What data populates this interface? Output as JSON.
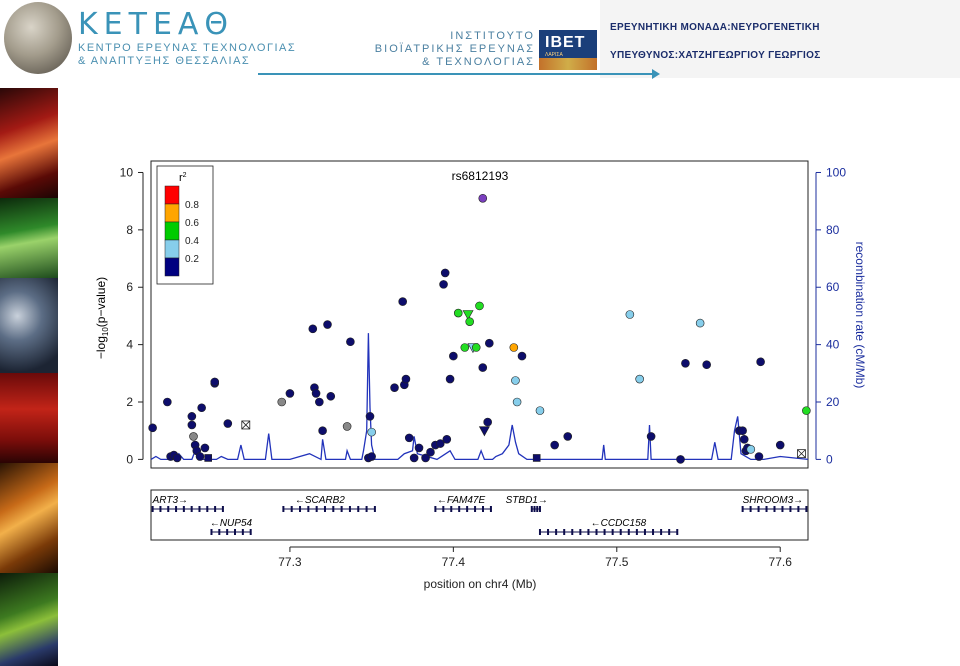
{
  "header": {
    "logo_title": "ΚΕΤΕΑΘ",
    "logo_line1": "ΚΕΝΤΡΟ ΕΡΕΥΝΑΣ ΤΕΧΝΟΛΟΓΙΑΣ",
    "logo_line2": "& ΑΝΑΠΤΥΞΗΣ ΘΕΣΣΑΛΙΑΣ",
    "institute_line1": "ΙΝΣΤΙΤΟΥΤΟ",
    "institute_line2": "ΒΙΟΪΑΤΡΙΚΗΣ ΕΡΕΥΝΑΣ",
    "institute_line3": "& ΤΕΧΝΟΛΟΓΙΑΣ",
    "ibet_logo": "IBET",
    "ibet_sub": "ΛΑΡΙΣΑ",
    "unit_line": "ΕΡΕΥΝΗΤΙΚΗ ΜΟΝΑΔΑ:ΝΕΥΡΟΓΕΝΕΤΙΚΗ",
    "responsible_line": "ΥΠΕΥΘΥΝΟΣ:ΧΑΤΖΗΓΕΩΡΓΙΟΥ ΓΕΩΡΓΙΟΣ",
    "accent_color": "#3a93b8"
  },
  "chart_data": {
    "type": "scatter",
    "title": "rs6812193",
    "xlabel": "position on chr4 (Mb)",
    "ylabel": "−log10(p−value)",
    "y2label": "recombination rate (cM/Mb)",
    "xlim": [
      77.215,
      77.617
    ],
    "ylim": [
      -0.3,
      10.4
    ],
    "y2lim": [
      -3,
      104
    ],
    "x_ticks": [
      "77.3",
      "77.4",
      "77.5",
      "77.6"
    ],
    "y_ticks": [
      "0",
      "2",
      "4",
      "6",
      "8",
      "10"
    ],
    "y2_ticks": [
      "0",
      "20",
      "40",
      "60",
      "80",
      "100"
    ],
    "legend": {
      "title": "r2",
      "placement": "top-left",
      "entries": [
        {
          "label": "0.8",
          "color": "#ff0000"
        },
        {
          "label": "0.6",
          "color": "#ffa500"
        },
        {
          "label": "0.4",
          "color": "#00cc00"
        },
        {
          "label": "0.2",
          "color": "#87ceeb"
        },
        {
          "label": "",
          "color": "#000080"
        }
      ]
    },
    "points": [
      {
        "x": 77.216,
        "y": 1.1,
        "c": "navy"
      },
      {
        "x": 77.225,
        "y": 2.0,
        "c": "navy"
      },
      {
        "x": 77.227,
        "y": 0.1,
        "c": "navy"
      },
      {
        "x": 77.229,
        "y": 0.15,
        "c": "navy"
      },
      {
        "x": 77.231,
        "y": 0.05,
        "c": "navy"
      },
      {
        "x": 77.24,
        "y": 1.5,
        "c": "navy"
      },
      {
        "x": 77.24,
        "y": 1.2,
        "c": "navy"
      },
      {
        "x": 77.241,
        "y": 0.8,
        "c": "grey"
      },
      {
        "x": 77.242,
        "y": 0.5,
        "c": "navy"
      },
      {
        "x": 77.243,
        "y": 0.3,
        "c": "navy"
      },
      {
        "x": 77.245,
        "y": 0.1,
        "c": "navy"
      },
      {
        "x": 77.246,
        "y": 1.8,
        "c": "navy"
      },
      {
        "x": 77.248,
        "y": 0.4,
        "c": "navy"
      },
      {
        "x": 77.25,
        "y": 0.05,
        "c": "navy",
        "shape": "square"
      },
      {
        "x": 77.254,
        "y": 2.65,
        "c": "navy"
      },
      {
        "x": 77.254,
        "y": 2.7,
        "c": "navy"
      },
      {
        "x": 77.262,
        "y": 1.25,
        "c": "navy"
      },
      {
        "x": 77.273,
        "y": 1.2,
        "c": "navy",
        "shape": "xbox"
      },
      {
        "x": 77.295,
        "y": 2.0,
        "c": "grey"
      },
      {
        "x": 77.3,
        "y": 2.3,
        "c": "navy"
      },
      {
        "x": 77.314,
        "y": 4.55,
        "c": "navy"
      },
      {
        "x": 77.315,
        "y": 2.5,
        "c": "navy"
      },
      {
        "x": 77.316,
        "y": 2.3,
        "c": "navy"
      },
      {
        "x": 77.318,
        "y": 2.0,
        "c": "navy"
      },
      {
        "x": 77.32,
        "y": 1.0,
        "c": "navy"
      },
      {
        "x": 77.323,
        "y": 4.7,
        "c": "navy"
      },
      {
        "x": 77.325,
        "y": 2.2,
        "c": "navy"
      },
      {
        "x": 77.335,
        "y": 1.15,
        "c": "grey"
      },
      {
        "x": 77.337,
        "y": 4.1,
        "c": "navy"
      },
      {
        "x": 77.348,
        "y": 0.05,
        "c": "navy"
      },
      {
        "x": 77.349,
        "y": 1.5,
        "c": "navy"
      },
      {
        "x": 77.35,
        "y": 0.95,
        "c": "sky"
      },
      {
        "x": 77.35,
        "y": 0.1,
        "c": "navy"
      },
      {
        "x": 77.364,
        "y": 2.5,
        "c": "navy"
      },
      {
        "x": 77.369,
        "y": 5.5,
        "c": "navy"
      },
      {
        "x": 77.37,
        "y": 2.6,
        "c": "navy"
      },
      {
        "x": 77.371,
        "y": 2.8,
        "c": "navy"
      },
      {
        "x": 77.373,
        "y": 0.75,
        "c": "navy"
      },
      {
        "x": 77.376,
        "y": 0.05,
        "c": "navy"
      },
      {
        "x": 77.379,
        "y": 0.4,
        "c": "navy"
      },
      {
        "x": 77.383,
        "y": 0.05,
        "c": "navy"
      },
      {
        "x": 77.386,
        "y": 0.25,
        "c": "navy"
      },
      {
        "x": 77.389,
        "y": 0.5,
        "c": "navy"
      },
      {
        "x": 77.392,
        "y": 0.55,
        "c": "navy"
      },
      {
        "x": 77.394,
        "y": 6.1,
        "c": "navy"
      },
      {
        "x": 77.395,
        "y": 6.5,
        "c": "navy"
      },
      {
        "x": 77.396,
        "y": 0.7,
        "c": "navy"
      },
      {
        "x": 77.398,
        "y": 2.8,
        "c": "navy"
      },
      {
        "x": 77.4,
        "y": 3.6,
        "c": "navy"
      },
      {
        "x": 77.403,
        "y": 5.1,
        "c": "green"
      },
      {
        "x": 77.407,
        "y": 3.9,
        "c": "green"
      },
      {
        "x": 77.409,
        "y": 5.05,
        "c": "green",
        "shape": "tri-down"
      },
      {
        "x": 77.41,
        "y": 4.8,
        "c": "green"
      },
      {
        "x": 77.412,
        "y": 3.9,
        "c": "sky",
        "shape": "tri-down"
      },
      {
        "x": 77.414,
        "y": 3.9,
        "c": "green"
      },
      {
        "x": 77.416,
        "y": 5.35,
        "c": "green"
      },
      {
        "x": 77.418,
        "y": 9.1,
        "c": "purple"
      },
      {
        "x": 77.418,
        "y": 3.2,
        "c": "navy"
      },
      {
        "x": 77.419,
        "y": 1.0,
        "c": "navy",
        "shape": "tri-down"
      },
      {
        "x": 77.421,
        "y": 1.3,
        "c": "navy"
      },
      {
        "x": 77.422,
        "y": 4.05,
        "c": "navy"
      },
      {
        "x": 77.437,
        "y": 3.9,
        "c": "orange"
      },
      {
        "x": 77.438,
        "y": 2.75,
        "c": "sky"
      },
      {
        "x": 77.439,
        "y": 2.0,
        "c": "sky"
      },
      {
        "x": 77.442,
        "y": 3.6,
        "c": "navy"
      },
      {
        "x": 77.451,
        "y": 0.05,
        "c": "navy",
        "shape": "square"
      },
      {
        "x": 77.453,
        "y": 1.7,
        "c": "sky"
      },
      {
        "x": 77.462,
        "y": 0.5,
        "c": "navy"
      },
      {
        "x": 77.47,
        "y": 0.8,
        "c": "navy"
      },
      {
        "x": 77.508,
        "y": 5.05,
        "c": "sky"
      },
      {
        "x": 77.514,
        "y": 2.8,
        "c": "sky"
      },
      {
        "x": 77.521,
        "y": 0.8,
        "c": "navy"
      },
      {
        "x": 77.539,
        "y": 0.0,
        "c": "navy"
      },
      {
        "x": 77.542,
        "y": 3.35,
        "c": "navy"
      },
      {
        "x": 77.551,
        "y": 4.75,
        "c": "sky"
      },
      {
        "x": 77.555,
        "y": 3.3,
        "c": "navy"
      },
      {
        "x": 77.575,
        "y": 1.0,
        "c": "navy"
      },
      {
        "x": 77.577,
        "y": 1.0,
        "c": "navy"
      },
      {
        "x": 77.578,
        "y": 0.7,
        "c": "navy"
      },
      {
        "x": 77.579,
        "y": 0.3,
        "c": "navy"
      },
      {
        "x": 77.58,
        "y": 0.4,
        "c": "navy"
      },
      {
        "x": 77.582,
        "y": 0.35,
        "c": "sky"
      },
      {
        "x": 77.587,
        "y": 0.1,
        "c": "navy"
      },
      {
        "x": 77.588,
        "y": 3.4,
        "c": "navy"
      },
      {
        "x": 77.6,
        "y": 0.5,
        "c": "navy"
      },
      {
        "x": 77.613,
        "y": 0.2,
        "c": "navy",
        "shape": "xbox"
      },
      {
        "x": 77.616,
        "y": 1.7,
        "c": "green"
      }
    ],
    "recombination": [
      [
        77.215,
        0
      ],
      [
        77.218,
        1
      ],
      [
        77.221,
        0
      ],
      [
        77.228,
        0
      ],
      [
        77.232,
        2
      ],
      [
        77.235,
        0
      ],
      [
        77.24,
        0
      ],
      [
        77.242,
        3
      ],
      [
        77.244,
        0
      ],
      [
        77.255,
        0
      ],
      [
        77.258,
        1
      ],
      [
        77.262,
        0
      ],
      [
        77.268,
        0
      ],
      [
        77.27,
        5
      ],
      [
        77.272,
        0
      ],
      [
        77.285,
        0
      ],
      [
        77.287,
        9
      ],
      [
        77.289,
        0
      ],
      [
        77.3,
        0
      ],
      [
        77.312,
        2
      ],
      [
        77.319,
        0
      ],
      [
        77.32,
        7
      ],
      [
        77.322,
        0
      ],
      [
        77.334,
        0
      ],
      [
        77.335,
        3
      ],
      [
        77.337,
        0
      ],
      [
        77.344,
        0
      ],
      [
        77.345,
        3
      ],
      [
        77.347,
        10
      ],
      [
        77.348,
        44
      ],
      [
        77.349,
        18
      ],
      [
        77.35,
        5
      ],
      [
        77.352,
        0
      ],
      [
        77.366,
        0
      ],
      [
        77.37,
        2
      ],
      [
        77.375,
        3
      ],
      [
        77.376,
        8
      ],
      [
        77.378,
        2
      ],
      [
        77.39,
        0
      ],
      [
        77.398,
        3
      ],
      [
        77.401,
        0
      ],
      [
        77.415,
        0
      ],
      [
        77.417,
        3
      ],
      [
        77.419,
        0
      ],
      [
        77.424,
        0
      ],
      [
        77.426,
        1
      ],
      [
        77.43,
        2
      ],
      [
        77.434,
        5
      ],
      [
        77.436,
        12
      ],
      [
        77.438,
        6
      ],
      [
        77.44,
        2
      ],
      [
        77.445,
        0
      ],
      [
        77.475,
        0
      ],
      [
        77.482,
        0
      ],
      [
        77.491,
        0
      ],
      [
        77.492,
        5
      ],
      [
        77.493,
        0
      ],
      [
        77.519,
        0
      ],
      [
        77.52,
        12
      ],
      [
        77.521,
        0
      ],
      [
        77.535,
        0
      ],
      [
        77.548,
        0
      ],
      [
        77.558,
        0
      ],
      [
        77.56,
        6
      ],
      [
        77.562,
        0
      ],
      [
        77.57,
        0
      ],
      [
        77.572,
        10
      ],
      [
        77.574,
        15
      ],
      [
        77.576,
        2
      ],
      [
        77.582,
        0
      ],
      [
        77.59,
        0
      ],
      [
        77.6,
        1
      ],
      [
        77.617,
        0
      ]
    ],
    "genes": [
      {
        "name": "ART3",
        "start": 77.216,
        "end": 77.259,
        "row": 0,
        "dir": "right",
        "label_x": 77.216
      },
      {
        "name": "NUP54",
        "start": 77.252,
        "end": 77.276,
        "row": 1,
        "dir": "left",
        "label_x": 77.251
      },
      {
        "name": "SCARB2",
        "start": 77.296,
        "end": 77.352,
        "row": 0,
        "dir": "left",
        "label_x": 77.303
      },
      {
        "name": "FAM47E",
        "start": 77.389,
        "end": 77.423,
        "row": 0,
        "dir": "left",
        "label_x": 77.39
      },
      {
        "name": "STBD1",
        "start": 77.448,
        "end": 77.453,
        "row": 0,
        "dir": "right",
        "label_x": 77.432
      },
      {
        "name": "CCDC158",
        "start": 77.453,
        "end": 77.537,
        "row": 1,
        "dir": "left",
        "label_x": 77.484
      },
      {
        "name": "SHROOM3",
        "start": 77.577,
        "end": 77.616,
        "row": 0,
        "dir": "right",
        "label_x": 77.577
      }
    ]
  }
}
